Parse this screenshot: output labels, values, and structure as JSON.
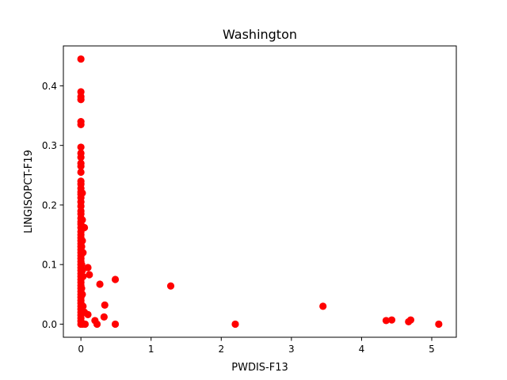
{
  "chart_data": {
    "type": "scatter",
    "title": "Washington",
    "xlabel": "PWDIS-F13",
    "ylabel": "LINGISOPCT-F19",
    "xlim": [
      -0.25,
      5.35
    ],
    "ylim": [
      -0.022,
      0.467
    ],
    "xticks": [
      {
        "value": 0,
        "label": "0"
      },
      {
        "value": 1,
        "label": "1"
      },
      {
        "value": 2,
        "label": "2"
      },
      {
        "value": 3,
        "label": "3"
      },
      {
        "value": 4,
        "label": "4"
      },
      {
        "value": 5,
        "label": "5"
      }
    ],
    "yticks": [
      {
        "value": 0.0,
        "label": "0.0"
      },
      {
        "value": 0.1,
        "label": "0.1"
      },
      {
        "value": 0.2,
        "label": "0.2"
      },
      {
        "value": 0.3,
        "label": "0.3"
      },
      {
        "value": 0.4,
        "label": "0.4"
      }
    ],
    "grid": false,
    "marker_color": "#ff0000",
    "series": [
      {
        "points": [
          [
            0.0,
            0.445
          ],
          [
            0.0,
            0.39
          ],
          [
            0.0,
            0.382
          ],
          [
            0.0,
            0.377
          ],
          [
            0.0,
            0.34
          ],
          [
            0.0,
            0.335
          ],
          [
            0.0,
            0.297
          ],
          [
            0.0,
            0.287
          ],
          [
            0.0,
            0.28
          ],
          [
            0.0,
            0.27
          ],
          [
            0.0,
            0.265
          ],
          [
            0.0,
            0.255
          ],
          [
            0.0,
            0.24
          ],
          [
            0.0,
            0.235
          ],
          [
            0.0,
            0.228
          ],
          [
            0.0,
            0.222
          ],
          [
            0.0,
            0.218
          ],
          [
            0.0,
            0.212
          ],
          [
            0.0,
            0.205
          ],
          [
            0.0,
            0.198
          ],
          [
            0.0,
            0.19
          ],
          [
            0.0,
            0.185
          ],
          [
            0.0,
            0.178
          ],
          [
            0.0,
            0.172
          ],
          [
            0.0,
            0.168
          ],
          [
            0.0,
            0.162
          ],
          [
            0.0,
            0.155
          ],
          [
            0.0,
            0.15
          ],
          [
            0.0,
            0.145
          ],
          [
            0.0,
            0.14
          ],
          [
            0.0,
            0.135
          ],
          [
            0.0,
            0.13
          ],
          [
            0.0,
            0.125
          ],
          [
            0.0,
            0.12
          ],
          [
            0.0,
            0.115
          ],
          [
            0.0,
            0.11
          ],
          [
            0.0,
            0.105
          ],
          [
            0.0,
            0.1
          ],
          [
            0.0,
            0.095
          ],
          [
            0.0,
            0.09
          ],
          [
            0.0,
            0.085
          ],
          [
            0.0,
            0.08
          ],
          [
            0.0,
            0.075
          ],
          [
            0.0,
            0.07
          ],
          [
            0.0,
            0.065
          ],
          [
            0.0,
            0.06
          ],
          [
            0.0,
            0.055
          ],
          [
            0.0,
            0.05
          ],
          [
            0.0,
            0.045
          ],
          [
            0.0,
            0.04
          ],
          [
            0.0,
            0.035
          ],
          [
            0.0,
            0.03
          ],
          [
            0.0,
            0.025
          ],
          [
            0.0,
            0.02
          ],
          [
            0.0,
            0.015
          ],
          [
            0.0,
            0.01
          ],
          [
            0.0,
            0.005
          ],
          [
            0.0,
            0.0
          ],
          [
            0.01,
            0.13
          ],
          [
            0.01,
            0.1
          ],
          [
            0.01,
            0.06
          ],
          [
            0.01,
            0.02
          ],
          [
            0.02,
            0.22
          ],
          [
            0.02,
            0.175
          ],
          [
            0.02,
            0.14
          ],
          [
            0.02,
            0.09
          ],
          [
            0.02,
            0.05
          ],
          [
            0.02,
            0.0
          ],
          [
            0.03,
            0.12
          ],
          [
            0.03,
            0.08
          ],
          [
            0.03,
            0.03
          ],
          [
            0.05,
            0.162
          ],
          [
            0.05,
            0.02
          ],
          [
            0.06,
            0.0
          ],
          [
            0.1,
            0.095
          ],
          [
            0.1,
            0.016
          ],
          [
            0.12,
            0.083
          ],
          [
            0.2,
            0.006
          ],
          [
            0.23,
            0.0
          ],
          [
            0.27,
            0.067
          ],
          [
            0.33,
            0.012
          ],
          [
            0.34,
            0.032
          ],
          [
            0.49,
            0.075
          ],
          [
            0.49,
            0.0
          ],
          [
            1.28,
            0.064
          ],
          [
            2.2,
            0.0
          ],
          [
            3.45,
            0.03
          ],
          [
            4.35,
            0.006
          ],
          [
            4.43,
            0.007
          ],
          [
            4.67,
            0.004
          ],
          [
            4.7,
            0.007
          ],
          [
            5.1,
            0.0
          ]
        ]
      }
    ]
  }
}
